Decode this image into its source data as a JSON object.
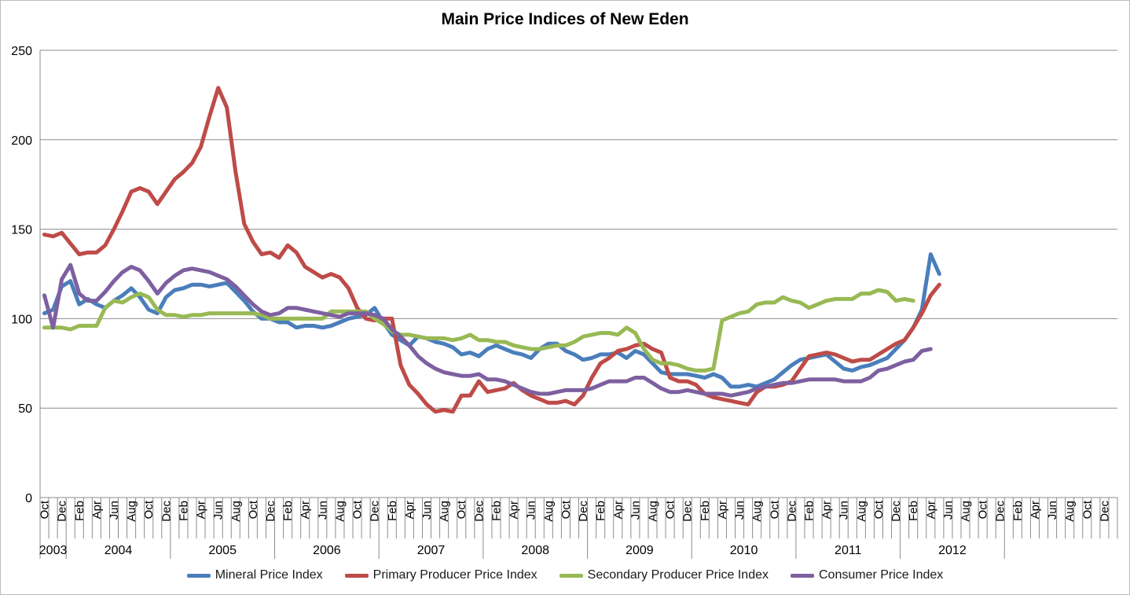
{
  "chart_data": {
    "type": "line",
    "title": "Main Price Indices of New Eden",
    "xlabel": "",
    "ylabel": "",
    "ylim": [
      0,
      250
    ],
    "yticks": [
      "0",
      "50",
      "100",
      "150",
      "200",
      "250"
    ],
    "grid": true,
    "legend_position": "bottom",
    "month_ticks": [
      "Oct",
      "Dec",
      "Feb",
      "Apr",
      "Jun",
      "Aug",
      "Oct",
      "Dec",
      "Feb",
      "Apr",
      "Jun",
      "Aug",
      "Oct",
      "Dec",
      "Feb",
      "Apr",
      "Jun",
      "Aug",
      "Oct",
      "Dec",
      "Feb",
      "Apr",
      "Jun",
      "Aug",
      "Oct",
      "Dec",
      "Feb",
      "Apr",
      "Jun",
      "Aug",
      "Oct",
      "Dec",
      "Feb",
      "Apr",
      "Jun",
      "Aug",
      "Oct",
      "Dec",
      "Feb",
      "Apr",
      "Jun",
      "Aug",
      "Oct",
      "Dec",
      "Feb",
      "Apr",
      "Jun",
      "Aug",
      "Oct",
      "Dec",
      "Feb",
      "Apr",
      "Jun",
      "Aug",
      "Oct",
      "Dec",
      "Feb",
      "Apr",
      "Jun",
      "Aug",
      "Oct",
      "Dec"
    ],
    "year_groups": [
      {
        "label": "2003",
        "months": 3
      },
      {
        "label": "2004",
        "months": 12
      },
      {
        "label": "2005",
        "months": 12
      },
      {
        "label": "2006",
        "months": 12
      },
      {
        "label": "2007",
        "months": 12
      },
      {
        "label": "2008",
        "months": 12
      },
      {
        "label": "2009",
        "months": 12
      },
      {
        "label": "2010",
        "months": 12
      },
      {
        "label": "2011",
        "months": 12
      },
      {
        "label": "2012",
        "months": 12
      }
    ],
    "series": [
      {
        "name": "Mineral Price Index",
        "color": "#4a7ebb",
        "values": [
          103,
          105,
          118,
          121,
          108,
          111,
          108,
          106,
          110,
          113,
          117,
          112,
          105,
          103,
          112,
          116,
          117,
          119,
          119,
          118,
          119,
          120,
          115,
          110,
          104,
          100,
          100,
          98,
          98,
          95,
          96,
          96,
          95,
          96,
          98,
          100,
          101,
          102,
          106,
          98,
          91,
          88,
          85,
          90,
          89,
          87,
          86,
          84,
          80,
          81,
          79,
          83,
          85,
          83,
          81,
          80,
          78,
          83,
          86,
          86,
          82,
          80,
          77,
          78,
          80,
          80,
          81,
          78,
          82,
          80,
          75,
          70,
          69,
          69,
          69,
          68,
          67,
          69,
          67,
          62,
          62,
          63,
          62,
          64,
          66,
          70,
          74,
          77,
          78,
          79,
          80,
          76,
          72,
          71,
          73,
          74,
          76,
          78,
          83,
          88,
          95,
          105,
          136,
          125
        ]
      },
      {
        "name": "Primary Producer Price Index",
        "color": "#be4b48",
        "values": [
          147,
          146,
          148,
          142,
          136,
          137,
          137,
          141,
          150,
          160,
          171,
          173,
          171,
          164,
          171,
          178,
          182,
          187,
          196,
          213,
          229,
          218,
          182,
          153,
          143,
          136,
          137,
          134,
          141,
          137,
          129,
          126,
          123,
          125,
          123,
          117,
          106,
          100,
          99,
          100,
          100,
          74,
          63,
          58,
          52,
          48,
          49,
          48,
          57,
          57,
          65,
          59,
          60,
          61,
          64,
          60,
          57,
          55,
          53,
          53,
          54,
          52,
          57,
          67,
          75,
          78,
          82,
          83,
          85,
          86,
          83,
          81,
          67,
          65,
          65,
          63,
          58,
          56,
          55,
          54,
          53,
          52,
          59,
          62,
          62,
          63,
          65,
          72,
          79,
          80,
          81,
          80,
          78,
          76,
          77,
          77,
          80,
          83,
          86,
          88,
          95,
          103,
          113,
          119
        ]
      },
      {
        "name": "Secondary Producer Price Index",
        "color": "#98b954",
        "values": [
          95,
          95,
          95,
          94,
          96,
          96,
          96,
          106,
          110,
          109,
          112,
          114,
          112,
          105,
          102,
          102,
          101,
          102,
          102,
          103,
          103,
          103,
          103,
          103,
          103,
          102,
          100,
          100,
          100,
          100,
          100,
          100,
          100,
          104,
          104,
          104,
          104,
          104,
          100,
          97,
          93,
          91,
          91,
          90,
          89,
          89,
          89,
          88,
          89,
          91,
          88,
          88,
          87,
          87,
          85,
          84,
          83,
          83,
          84,
          85,
          85,
          87,
          90,
          91,
          92,
          92,
          91,
          95,
          92,
          83,
          77,
          75,
          75,
          74,
          72,
          71,
          71,
          72,
          99,
          101,
          103,
          104,
          108,
          109,
          109,
          112,
          110,
          109,
          106,
          108,
          110,
          111,
          111,
          111,
          114,
          114,
          116,
          115,
          110,
          111,
          110
        ]
      },
      {
        "name": "Consumer Price Index",
        "color": "#7d60a0",
        "values": [
          113,
          95,
          122,
          130,
          114,
          110,
          110,
          115,
          121,
          126,
          129,
          127,
          121,
          114,
          120,
          124,
          127,
          128,
          127,
          126,
          124,
          122,
          118,
          113,
          108,
          104,
          102,
          103,
          106,
          106,
          105,
          104,
          103,
          102,
          101,
          103,
          103,
          103,
          102,
          100,
          94,
          90,
          85,
          79,
          75,
          72,
          70,
          69,
          68,
          68,
          69,
          66,
          66,
          65,
          63,
          61,
          59,
          58,
          58,
          59,
          60,
          60,
          60,
          61,
          63,
          65,
          65,
          65,
          67,
          67,
          64,
          61,
          59,
          59,
          60,
          59,
          58,
          58,
          58,
          57,
          58,
          59,
          61,
          62,
          63,
          64,
          64,
          65,
          66,
          66,
          66,
          66,
          65,
          65,
          65,
          67,
          71,
          72,
          74,
          76,
          77,
          82,
          83
        ]
      }
    ]
  }
}
